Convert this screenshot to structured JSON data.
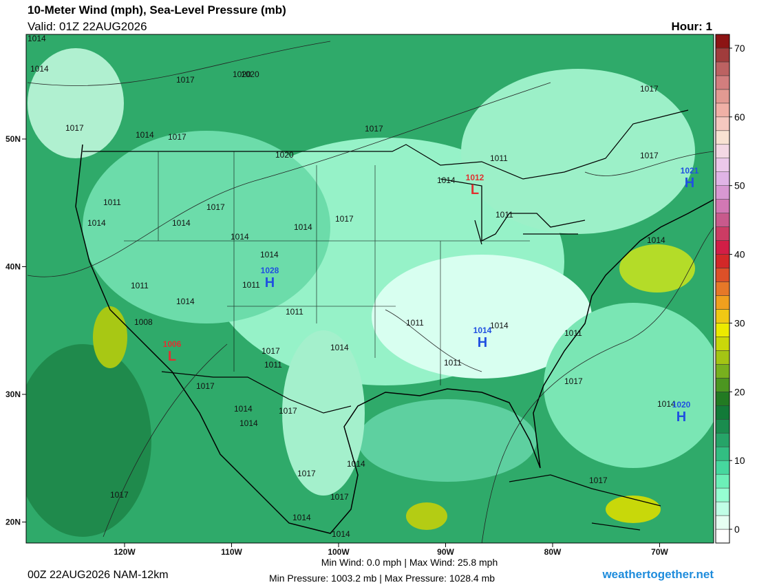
{
  "title": "10-Meter Wind (mph), Sea-Level Pressure (mb)",
  "valid": "Valid: 01Z 22AUG2026",
  "hour": "Hour: 1",
  "map": {
    "lat_ticks": [
      {
        "value": 50,
        "label": "50N"
      },
      {
        "value": 40,
        "label": "40N"
      },
      {
        "value": 30,
        "label": "30N"
      },
      {
        "value": 20,
        "label": "20N"
      }
    ],
    "lon_ticks": [
      {
        "value": -120,
        "label": "120W"
      },
      {
        "value": -110,
        "label": "110W"
      },
      {
        "value": -100,
        "label": "100W"
      },
      {
        "value": -90,
        "label": "90W"
      },
      {
        "value": -80,
        "label": "80W"
      },
      {
        "value": -70,
        "label": "70W"
      }
    ],
    "centers": [
      {
        "symbol": "L",
        "value": "1012",
        "color": "#e03030"
      },
      {
        "symbol": "H",
        "value": "1021",
        "color": "#2050e0"
      },
      {
        "symbol": "H",
        "value": "1028",
        "color": "#2050e0"
      },
      {
        "symbol": "H",
        "value": "1014",
        "color": "#2050e0"
      },
      {
        "symbol": "L",
        "value": "1006",
        "color": "#e03030"
      },
      {
        "symbol": "H",
        "value": "1020",
        "color": "#2050e0"
      }
    ],
    "isobar_labels": [
      "1014",
      "1014",
      "1017",
      "1020",
      "1017",
      "1014",
      "1017",
      "1017",
      "1020",
      "1011",
      "1014",
      "1011",
      "1014",
      "1014",
      "1017",
      "1017",
      "1014",
      "1011",
      "1014",
      "1011",
      "1014",
      "1014",
      "1011",
      "1014",
      "1011",
      "1008",
      "1011",
      "1014",
      "1011",
      "1014",
      "1017",
      "1011",
      "1017",
      "1017",
      "1014",
      "1014",
      "1017",
      "1011",
      "1017",
      "1014",
      "1017",
      "1014",
      "1017",
      "1014",
      "1014",
      "1017",
      "1017",
      "1017",
      "1020"
    ]
  },
  "colorbar": {
    "lim": [
      -2,
      72
    ],
    "ticks": [
      0,
      10,
      20,
      30,
      40,
      50,
      60,
      70
    ],
    "colors": [
      "#ffffff",
      "#e6fff2",
      "#c0ffe6",
      "#96ffd2",
      "#6cf0b8",
      "#46d89e",
      "#32be82",
      "#26a468",
      "#1a8c4e",
      "#127a38",
      "#227a22",
      "#4c9620",
      "#78b01e",
      "#a4c414",
      "#cad80a",
      "#ecea00",
      "#f0c814",
      "#f0a01e",
      "#e67828",
      "#dc5028",
      "#d22828",
      "#d21e46",
      "#cc3c64",
      "#c85a8c",
      "#d278b4",
      "#d898d2",
      "#e0b4e6",
      "#ecc8ea",
      "#f4d8e4",
      "#f8e2d2",
      "#f5c8c0",
      "#f0b0a6",
      "#e29a92",
      "#d27e7e",
      "#bc6262",
      "#a03c3c",
      "#8c1414"
    ]
  },
  "stats": {
    "wind": "Min Wind:  0.0 mph | Max Wind: 25.8 mph",
    "pressure": "Min Pressure: 1003.2 mb | Max Pressure: 1028.4 mb"
  },
  "footer": "00Z 22AUG2026 NAM-12km",
  "site": "weathertogether.net"
}
